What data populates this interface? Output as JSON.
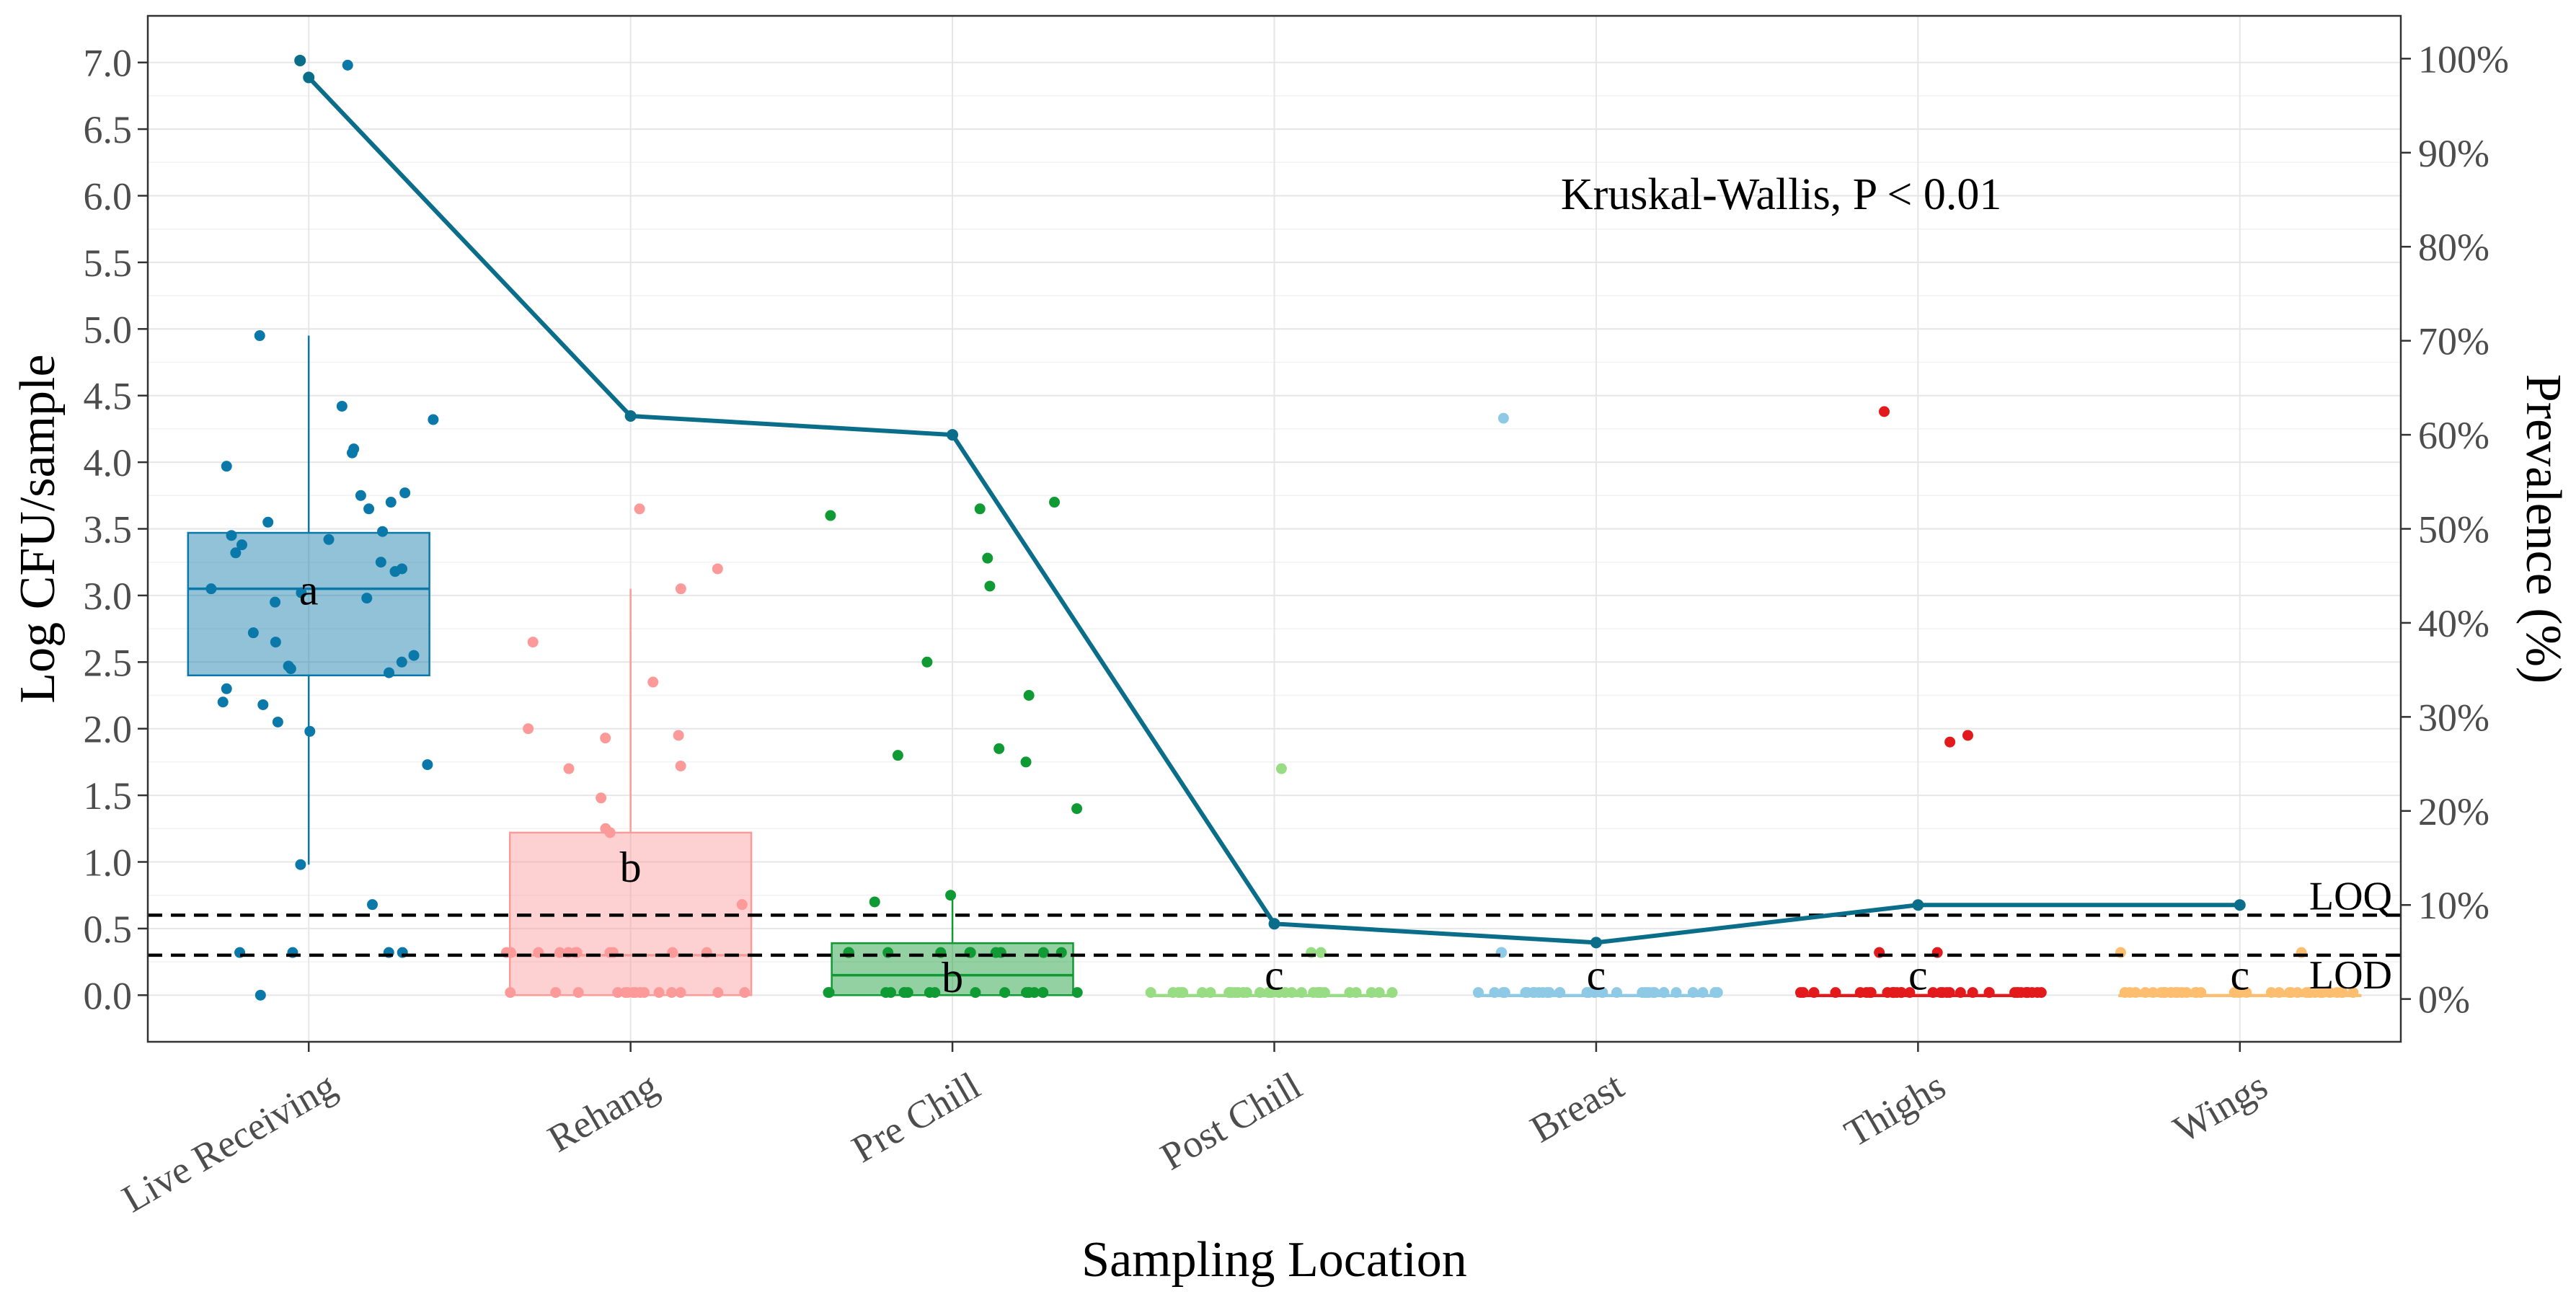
{
  "chart_data": {
    "type": "box+line",
    "title": "",
    "xlabel": "Sampling Location",
    "ylabel": "Log CFU/sample",
    "y2label": "Prevalence (%)",
    "ylim": [
      -0.35,
      7.35
    ],
    "y2lim": [
      -4.55,
      104.55
    ],
    "yticks": [
      0.0,
      0.5,
      1.0,
      1.5,
      2.0,
      2.5,
      3.0,
      3.5,
      4.0,
      4.5,
      5.0,
      5.5,
      6.0,
      6.5,
      7.0
    ],
    "ytick_labels": [
      "0.0",
      "0.5",
      "1.0",
      "1.5",
      "2.0",
      "2.5",
      "3.0",
      "3.5",
      "4.0",
      "4.5",
      "5.0",
      "5.5",
      "6.0",
      "6.5",
      "7.0"
    ],
    "y2ticks": [
      0,
      10,
      20,
      30,
      40,
      50,
      60,
      70,
      80,
      90,
      100
    ],
    "y2tick_labels": [
      "0%",
      "10%",
      "20%",
      "30%",
      "40%",
      "50%",
      "60%",
      "70%",
      "80%",
      "90%",
      "100%"
    ],
    "grid": true,
    "categories": [
      "Live Receiving",
      "Rehang",
      "Pre Chill",
      "Post Chill",
      "Breast",
      "Thighs",
      "Wings"
    ],
    "colors": [
      "#0a78a8",
      "#fb9a99",
      "#109a34",
      "#98dc84",
      "#8ecae6",
      "#e31a1c",
      "#fdbf6f"
    ],
    "box_fill_opacity": 0.45,
    "boxes": [
      {
        "q1": 2.4,
        "median": 3.05,
        "q3": 3.47,
        "whisker_low": 0.98,
        "whisker_high": 4.95
      },
      {
        "q1": 0.0,
        "median": 0.3,
        "q3": 1.22,
        "whisker_low": 0.0,
        "whisker_high": 3.05
      },
      {
        "q1": 0.0,
        "median": 0.15,
        "q3": 0.39,
        "whisker_low": 0.0,
        "whisker_high": 0.73
      },
      {
        "q1": 0.0,
        "median": 0.0,
        "q3": 0.0,
        "whisker_low": 0.0,
        "whisker_high": 0.0
      },
      {
        "q1": 0.0,
        "median": 0.0,
        "q3": 0.0,
        "whisker_low": 0.0,
        "whisker_high": 0.0
      },
      {
        "q1": 0.0,
        "median": 0.0,
        "q3": 0.0,
        "whisker_low": 0.0,
        "whisker_high": 0.0
      },
      {
        "q1": 0.0,
        "median": 0.0,
        "q3": 0.0,
        "whisker_low": 0.0,
        "whisker_high": 0.0
      }
    ],
    "group_letters": [
      "a",
      "b",
      "b",
      "c",
      "c",
      "c",
      "c"
    ],
    "points": [
      {
        "category": "Live Receiving",
        "values": [
          6.98,
          4.95,
          4.42,
          4.32,
          4.1,
          4.07,
          3.97,
          3.77,
          3.75,
          3.7,
          3.65,
          3.55,
          3.48,
          3.45,
          3.42,
          3.38,
          3.32,
          3.25,
          3.2,
          3.18,
          3.05,
          3.02,
          2.98,
          2.95,
          2.72,
          2.65,
          2.55,
          2.5,
          2.47,
          2.45,
          2.42,
          2.3,
          2.2,
          2.18,
          2.05,
          1.98,
          1.73,
          0.98,
          0.68,
          0.32,
          0.32,
          0.32,
          0.32,
          0.0
        ]
      },
      {
        "category": "Rehang",
        "values": [
          3.65,
          3.2,
          3.05,
          2.65,
          2.35,
          2.0,
          1.95,
          1.93,
          1.72,
          1.7,
          1.48,
          1.25,
          1.22,
          0.68,
          0.32,
          0.32,
          0.32,
          0.32,
          0.32,
          0.32,
          0.32,
          0.32,
          0.32,
          0.32,
          0.32,
          0.02,
          0.02,
          0.02,
          0.02,
          0.02,
          0.02,
          0.02,
          0.02,
          0.02,
          0.02,
          0.02,
          0.02,
          0.02,
          0.02,
          0.02
        ]
      },
      {
        "category": "Pre Chill",
        "values": [
          3.7,
          3.65,
          3.6,
          3.28,
          3.07,
          2.5,
          2.25,
          1.85,
          1.8,
          1.75,
          1.4,
          0.75,
          0.7,
          0.32,
          0.32,
          0.32,
          0.32,
          0.32,
          0.32,
          0.32,
          0.32,
          0.32,
          0.32,
          0.02,
          0.02,
          0.02,
          0.02,
          0.02,
          0.02,
          0.02,
          0.02,
          0.02,
          0.02,
          0.02,
          0.02,
          0.02,
          0.02,
          0.02,
          0.02,
          0.02,
          0.02
        ]
      },
      {
        "category": "Post Chill",
        "values": [
          1.7,
          0.32,
          0.32,
          0.02,
          0.02,
          0.02,
          0.02,
          0.02,
          0.02,
          0.02,
          0.02,
          0.02,
          0.02,
          0.02,
          0.02,
          0.02,
          0.02,
          0.02,
          0.02,
          0.02,
          0.02,
          0.02,
          0.02,
          0.02,
          0.02,
          0.02,
          0.02,
          0.02,
          0.02,
          0.02,
          0.02,
          0.02,
          0.02,
          0.02,
          0.02,
          0.02
        ]
      },
      {
        "category": "Breast",
        "values": [
          4.33,
          0.32,
          0.32,
          0.02,
          0.02,
          0.02,
          0.02,
          0.02,
          0.02,
          0.02,
          0.02,
          0.02,
          0.02,
          0.02,
          0.02,
          0.02,
          0.02,
          0.02,
          0.02,
          0.02,
          0.02,
          0.02,
          0.02,
          0.02,
          0.02,
          0.02,
          0.02,
          0.02,
          0.02,
          0.02,
          0.02,
          0.02,
          0.02,
          0.02,
          0.02,
          0.02
        ]
      },
      {
        "category": "Thighs",
        "values": [
          4.38,
          1.95,
          1.9,
          0.32,
          0.32,
          0.02,
          0.02,
          0.02,
          0.02,
          0.02,
          0.02,
          0.02,
          0.02,
          0.02,
          0.02,
          0.02,
          0.02,
          0.02,
          0.02,
          0.02,
          0.02,
          0.02,
          0.02,
          0.02,
          0.02,
          0.02,
          0.02,
          0.02,
          0.02,
          0.02,
          0.02,
          0.02,
          0.02,
          0.02,
          0.02,
          0.02,
          0.02,
          0.02,
          0.02,
          0.02
        ]
      },
      {
        "category": "Wings",
        "values": [
          0.32,
          0.32,
          0.02,
          0.02,
          0.02,
          0.02,
          0.02,
          0.02,
          0.02,
          0.02,
          0.02,
          0.02,
          0.02,
          0.02,
          0.02,
          0.02,
          0.02,
          0.02,
          0.02,
          0.02,
          0.02,
          0.02,
          0.02,
          0.02,
          0.02,
          0.02,
          0.02,
          0.02,
          0.02,
          0.02,
          0.02,
          0.02,
          0.02,
          0.02,
          0.02,
          0.02,
          0.02,
          0.02,
          0.02,
          0.02
        ]
      }
    ],
    "prevalence_line": {
      "name": "Prevalence (%)",
      "color": "#0a6e8a",
      "values": [
        98,
        62,
        60,
        8,
        6,
        10,
        10
      ],
      "extra_marker": {
        "category": "Live Receiving",
        "value": 99.8
      }
    },
    "reference_lines": [
      {
        "label": "LOQ",
        "y": 0.6
      },
      {
        "label": "LOD",
        "y": 0.3
      }
    ],
    "annotations": [
      {
        "text": "Kruskal-Wallis, P < 0.01"
      }
    ]
  }
}
